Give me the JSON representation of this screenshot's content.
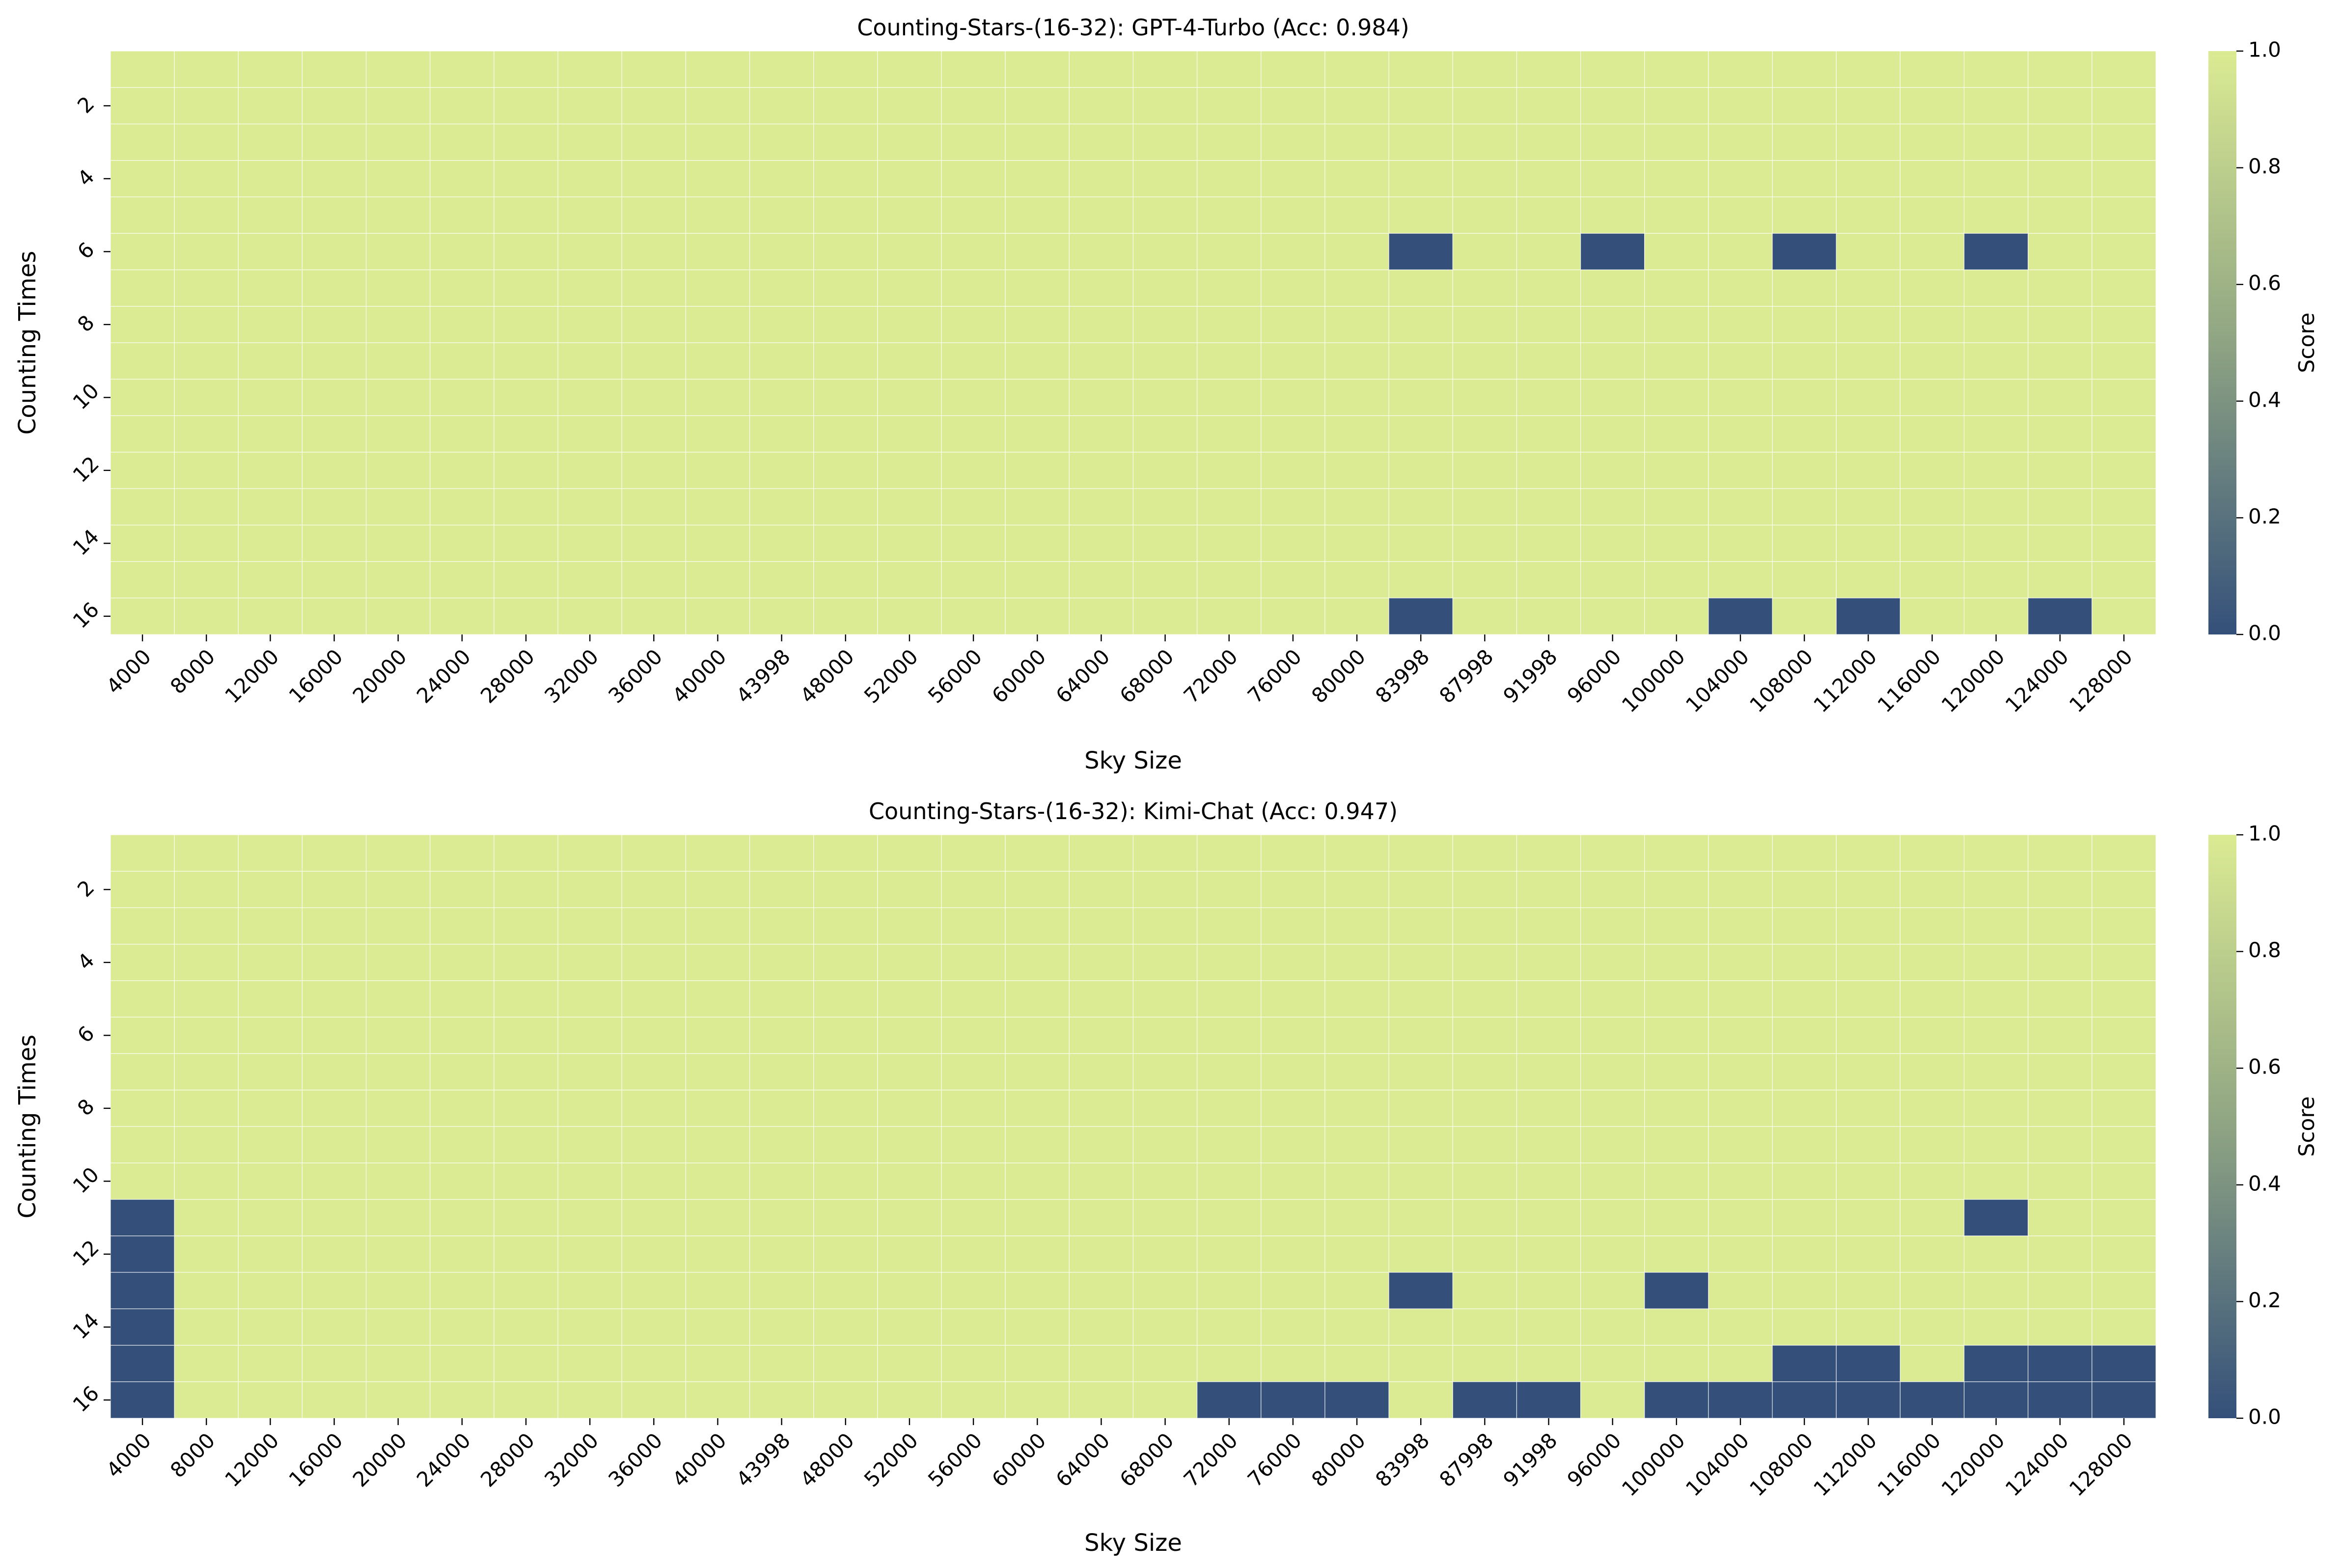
{
  "colors": {
    "low": "#34507a",
    "high": "#dbeb93",
    "mid": "#8fa483",
    "grid": "#ffffff"
  },
  "chart_data": [
    {
      "type": "heatmap",
      "title": "Counting-Stars-(16-32): GPT-4-Turbo (Acc: 0.984)",
      "xlabel": "Sky Size",
      "ylabel": "Counting Times",
      "colorbar_label": "Score",
      "colorbar_ticks": [
        "0.0",
        "0.2",
        "0.4",
        "0.6",
        "0.8",
        "1.0"
      ],
      "value_range": [
        0,
        1
      ],
      "x": [
        "4000",
        "8000",
        "12000",
        "16000",
        "20000",
        "24000",
        "28000",
        "32000",
        "36000",
        "40000",
        "43998",
        "48000",
        "52000",
        "56000",
        "60000",
        "64000",
        "68000",
        "72000",
        "76000",
        "80000",
        "83998",
        "87998",
        "91998",
        "96000",
        "100000",
        "104000",
        "108000",
        "112000",
        "116000",
        "120000",
        "124000",
        "128000"
      ],
      "y_tick_labels": [
        "2",
        "4",
        "6",
        "8",
        "10",
        "12",
        "14",
        "16"
      ],
      "rows": 16,
      "zero_cells": [
        [
          6,
          83998
        ],
        [
          6,
          96000
        ],
        [
          6,
          108000
        ],
        [
          6,
          120000
        ],
        [
          16,
          83998
        ],
        [
          16,
          104000
        ],
        [
          16,
          112000
        ],
        [
          16,
          124000
        ]
      ]
    },
    {
      "type": "heatmap",
      "title": "Counting-Stars-(16-32): Kimi-Chat (Acc: 0.947)",
      "xlabel": "Sky Size",
      "ylabel": "Counting Times",
      "colorbar_label": "Score",
      "colorbar_ticks": [
        "0.0",
        "0.2",
        "0.4",
        "0.6",
        "0.8",
        "1.0"
      ],
      "value_range": [
        0,
        1
      ],
      "x": [
        "4000",
        "8000",
        "12000",
        "16000",
        "20000",
        "24000",
        "28000",
        "32000",
        "36000",
        "40000",
        "43998",
        "48000",
        "52000",
        "56000",
        "60000",
        "64000",
        "68000",
        "72000",
        "76000",
        "80000",
        "83998",
        "87998",
        "91998",
        "96000",
        "100000",
        "104000",
        "108000",
        "112000",
        "116000",
        "120000",
        "124000",
        "128000"
      ],
      "y_tick_labels": [
        "2",
        "4",
        "6",
        "8",
        "10",
        "12",
        "14",
        "16"
      ],
      "rows": 16,
      "zero_cells": [
        [
          11,
          4000
        ],
        [
          12,
          4000
        ],
        [
          13,
          4000
        ],
        [
          14,
          4000
        ],
        [
          15,
          4000
        ],
        [
          16,
          4000
        ],
        [
          11,
          120000
        ],
        [
          13,
          83998
        ],
        [
          13,
          100000
        ],
        [
          15,
          108000
        ],
        [
          15,
          112000
        ],
        [
          15,
          120000
        ],
        [
          15,
          124000
        ],
        [
          15,
          128000
        ],
        [
          16,
          72000
        ],
        [
          16,
          76000
        ],
        [
          16,
          80000
        ],
        [
          16,
          87998
        ],
        [
          16,
          91998
        ],
        [
          16,
          100000
        ],
        [
          16,
          104000
        ],
        [
          16,
          108000
        ],
        [
          16,
          112000
        ],
        [
          16,
          116000
        ],
        [
          16,
          120000
        ],
        [
          16,
          124000
        ],
        [
          16,
          128000
        ]
      ]
    }
  ]
}
